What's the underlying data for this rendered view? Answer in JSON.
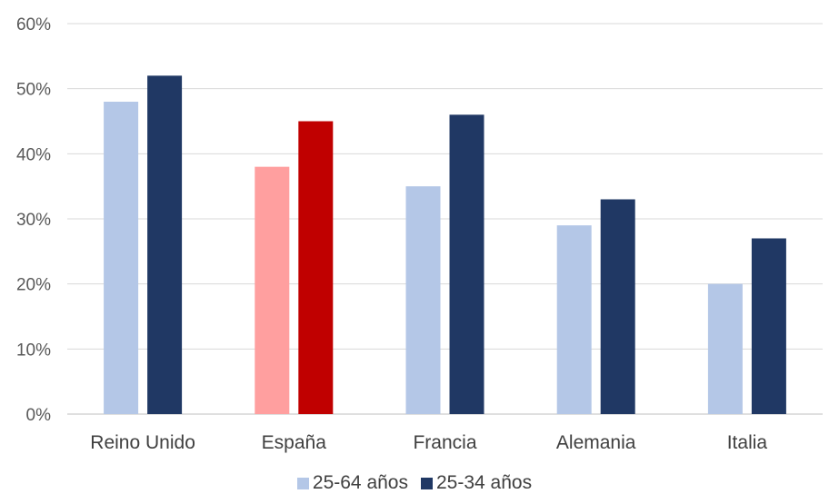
{
  "chart_data": {
    "type": "bar",
    "title": "",
    "xlabel": "",
    "ylabel": "",
    "ylim": [
      0,
      60
    ],
    "y_ticks": [
      "0%",
      "10%",
      "20%",
      "30%",
      "40%",
      "50%",
      "60%"
    ],
    "grid": true,
    "legend_position": "bottom",
    "categories": [
      "Reino Unido",
      "España",
      "Francia",
      "Alemania",
      "Italia"
    ],
    "series": [
      {
        "name": "25-64 años",
        "values": [
          48,
          38,
          35,
          29,
          20
        ],
        "color": "#b4c7e7"
      },
      {
        "name": "25-34 años",
        "values": [
          52,
          45,
          46,
          33,
          27
        ],
        "color": "#203864"
      }
    ],
    "highlight": {
      "category": "España",
      "colors": [
        "#ff9f9f",
        "#c00000"
      ]
    }
  }
}
